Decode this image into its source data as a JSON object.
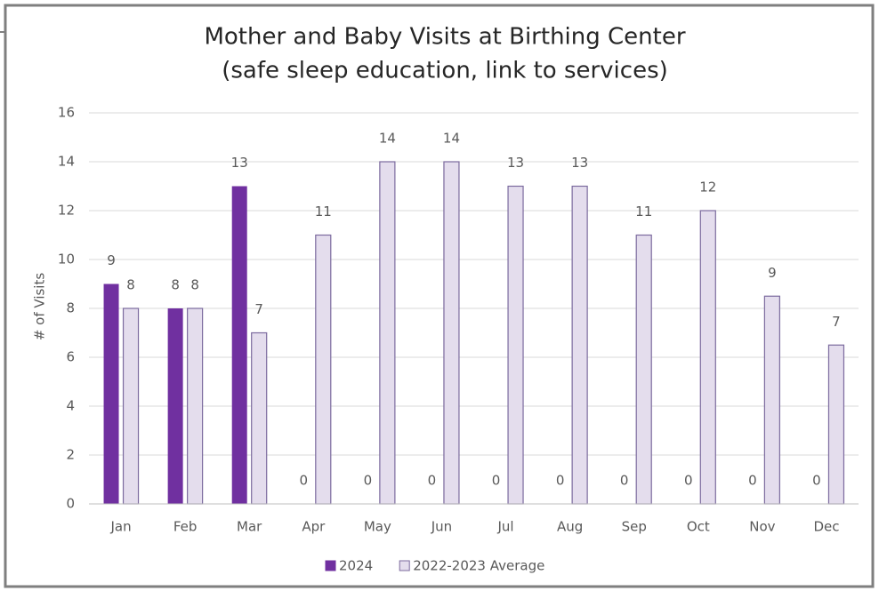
{
  "chart_data": {
    "type": "bar",
    "title": "Mother and Baby Visits at Birthing Center",
    "subtitle": "(safe sleep education, link to services)",
    "y_label": "# of Visits",
    "categories": [
      "Jan",
      "Feb",
      "Mar",
      "Apr",
      "May",
      "Jun",
      "Jul",
      "Aug",
      "Sep",
      "Oct",
      "Nov",
      "Dec"
    ],
    "series": [
      {
        "name": "2024",
        "color": "#7030a0",
        "values": [
          9,
          8,
          13,
          0,
          0,
          0,
          0,
          0,
          0,
          0,
          0,
          0
        ]
      },
      {
        "name": "2022-2023 Average",
        "color": "#e4dded",
        "values": [
          8,
          8,
          7,
          11,
          14,
          14,
          13,
          13,
          11,
          12,
          8.5,
          6.5
        ],
        "value_labels": [
          "8",
          "8",
          "7",
          "11",
          "14",
          "14",
          "13",
          "13",
          "11",
          "12",
          "9",
          "7"
        ]
      }
    ],
    "ylim": [
      0,
      16
    ],
    "yticks": [
      0,
      2,
      4,
      6,
      8,
      10,
      12,
      14,
      16
    ],
    "grid": true,
    "legend": "bottom"
  }
}
